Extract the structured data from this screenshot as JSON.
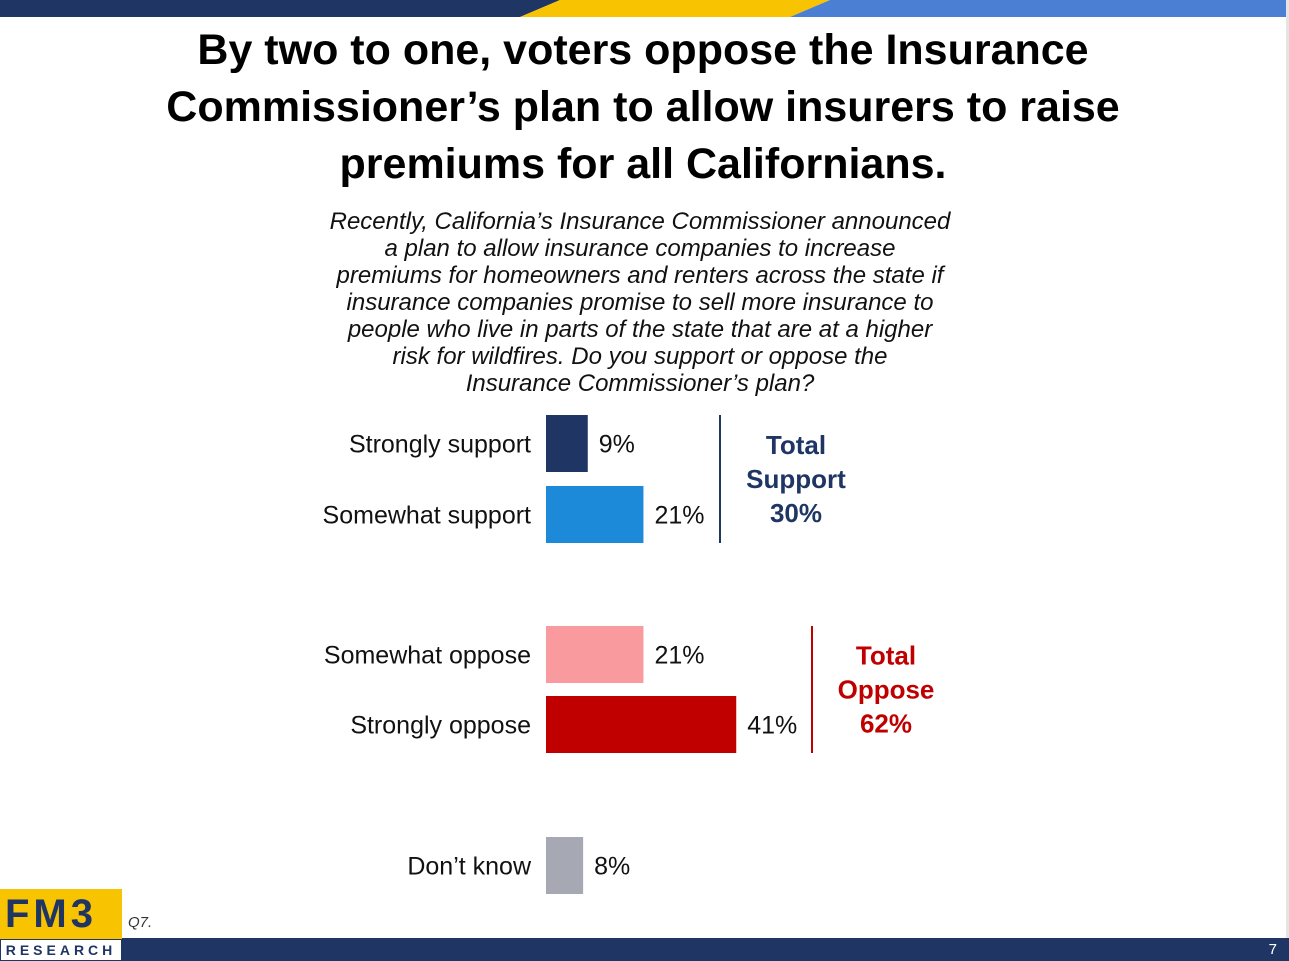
{
  "title_lines": [
    "By two to one, voters oppose the Insurance",
    "Commissioner’s plan to allow insurers to raise",
    "premiums for all Californians."
  ],
  "question_lines": [
    "Recently, California’s Insurance Commissioner announced",
    "a plan to allow insurance companies to increase",
    "premiums for homeowners and renters across the state if",
    "insurance companies promise to sell more insurance to",
    "people who live in parts of the state that are at a higher",
    "risk for wildfires.  Do you support or oppose the",
    "Insurance Commissioner’s plan?"
  ],
  "chart_data": {
    "type": "bar",
    "orientation": "horizontal",
    "categories": [
      "Strongly support",
      "Somewhat support",
      "Somewhat oppose",
      "Strongly oppose",
      "Don’t know"
    ],
    "values": [
      9,
      21,
      21,
      41,
      8
    ],
    "value_labels": [
      "9%",
      "21%",
      "21%",
      "41%",
      "8%"
    ],
    "colors": [
      "#1f3564",
      "#1c8ad8",
      "#f89a9e",
      "#c00000",
      "#a6a9b4"
    ],
    "groups": [
      {
        "label_lines": [
          "Total",
          "Support",
          "30%"
        ],
        "value": 30,
        "color": "#1f3564",
        "members": [
          0,
          1
        ]
      },
      {
        "label_lines": [
          "Total",
          "Oppose",
          "62%"
        ],
        "value": 62,
        "color": "#c00000",
        "members": [
          2,
          3
        ]
      }
    ],
    "xlim": [
      0,
      100
    ]
  },
  "footer": {
    "logo_top": "FM3",
    "logo_bottom": "RESEARCH",
    "question_number": "Q7.",
    "page_number": "7"
  },
  "theme": {
    "navy": "#1f3564",
    "gold": "#f8c300",
    "blue": "#4a7fd4"
  }
}
